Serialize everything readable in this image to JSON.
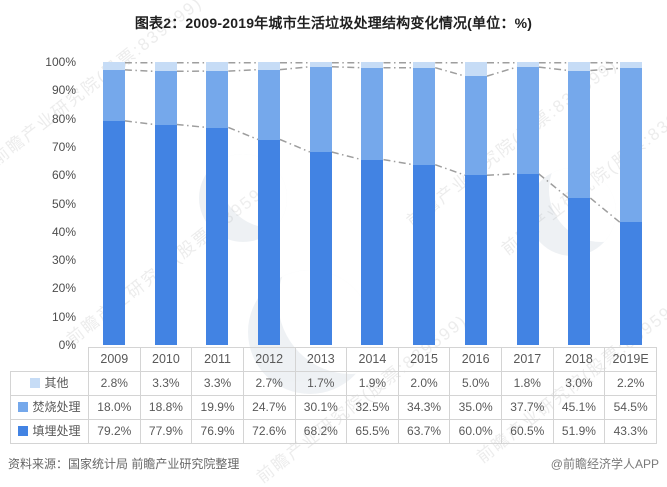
{
  "title": "图表2：2009-2019年城市生活垃圾处理结构变化情况(单位：%)",
  "footer": {
    "source": "资料来源：国家统计局 前瞻产业研究院整理",
    "credit": "@前瞻经济学人APP"
  },
  "watermark": {
    "text": "前瞻产业研究院(股票:839599)"
  },
  "colors": {
    "landfill": "#4283e3",
    "incineration": "#75a8eb",
    "other": "#c6dcf6",
    "series_line": "#9e9e9e",
    "table_border": "#d4d4d4",
    "text": "#595959"
  },
  "y_axis": {
    "ticks": [
      "0%",
      "10%",
      "20%",
      "30%",
      "40%",
      "50%",
      "60%",
      "70%",
      "80%",
      "90%",
      "100%"
    ],
    "min": 0,
    "max": 100
  },
  "chart_data": {
    "type": "bar",
    "stacked": true,
    "title": "图表2：2009-2019年城市生活垃圾处理结构变化情况(单位：%)",
    "xlabel": "",
    "ylabel": "",
    "unit": "%",
    "ylim": [
      0,
      100
    ],
    "grid": false,
    "legend_position": "table-left",
    "series_lines": true,
    "categories": [
      "2009",
      "2010",
      "2011",
      "2012",
      "2013",
      "2014",
      "2015",
      "2016",
      "2017",
      "2018",
      "2019E"
    ],
    "series": [
      {
        "name": "填埋处理",
        "key": "landfill",
        "values": [
          79.2,
          77.9,
          76.9,
          72.6,
          68.2,
          65.5,
          63.7,
          60.0,
          60.5,
          51.9,
          43.3
        ]
      },
      {
        "name": "焚烧处理",
        "key": "incineration",
        "values": [
          18.0,
          18.8,
          19.9,
          24.7,
          30.1,
          32.5,
          34.3,
          35.0,
          37.7,
          45.1,
          54.5
        ]
      },
      {
        "name": "其他",
        "key": "other",
        "values": [
          2.8,
          3.3,
          3.3,
          2.7,
          1.7,
          1.9,
          2.0,
          5.0,
          1.8,
          3.0,
          2.2
        ]
      }
    ]
  }
}
